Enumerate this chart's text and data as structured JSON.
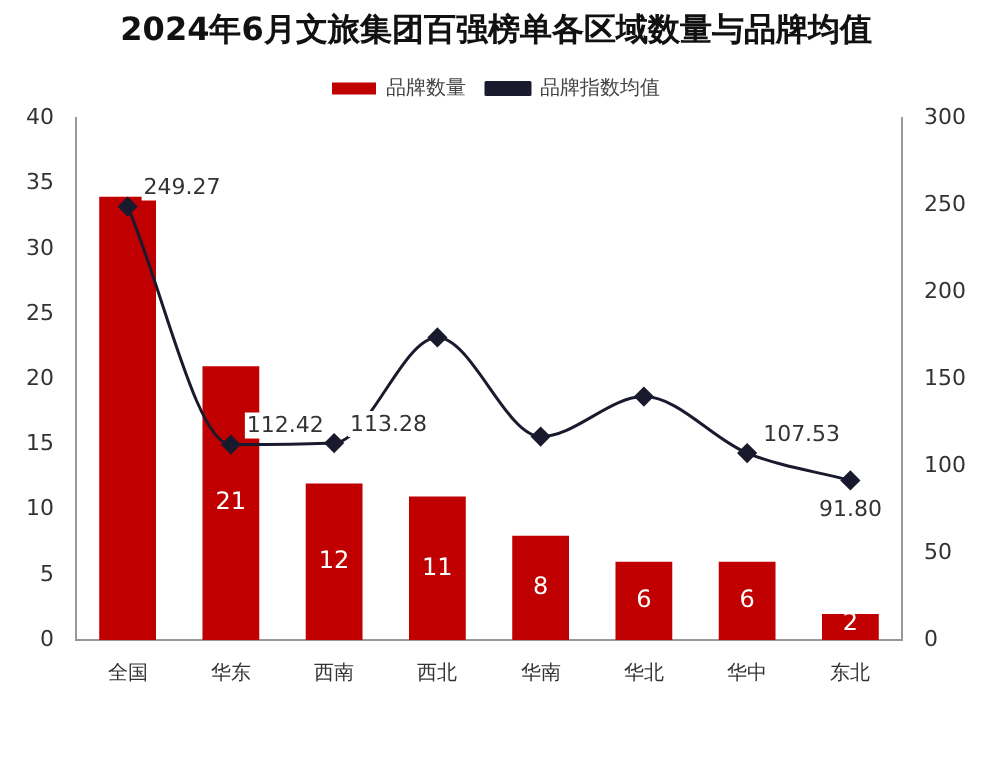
{
  "chart_data": {
    "type": "bar",
    "title": "2024年6月文旅集团百强榜单各区域数量与品牌均值",
    "categories": [
      "全国",
      "华东",
      "西南",
      "西北",
      "华南",
      "华北",
      "华中",
      "东北"
    ],
    "series": [
      {
        "name": "品牌数量",
        "color": "#c00000",
        "values": [
          34,
          21,
          12,
          11,
          8,
          6,
          6,
          2
        ],
        "value_labels": [
          null,
          "21",
          "12",
          "11",
          "8",
          "6",
          "6",
          "2"
        ]
      },
      {
        "name": "品牌指数均值",
        "type": "line",
        "axis": "y2",
        "color": "#1a1a2e",
        "marker": "diamond",
        "values": [
          249.27,
          112.42,
          113.28,
          174,
          117,
          140,
          107.53,
          91.8
        ],
        "value_labels": [
          "249.27",
          "112.42",
          "113.28",
          null,
          null,
          null,
          "107.53",
          "91.80"
        ]
      }
    ],
    "ylim": [
      0,
      40
    ],
    "yticks": [
      0,
      5,
      10,
      15,
      20,
      25,
      30,
      35,
      40
    ],
    "y2lim": [
      0,
      300
    ],
    "y2ticks": [
      0,
      50,
      100,
      150,
      200,
      250,
      300
    ],
    "legend": "top",
    "grid": false
  }
}
